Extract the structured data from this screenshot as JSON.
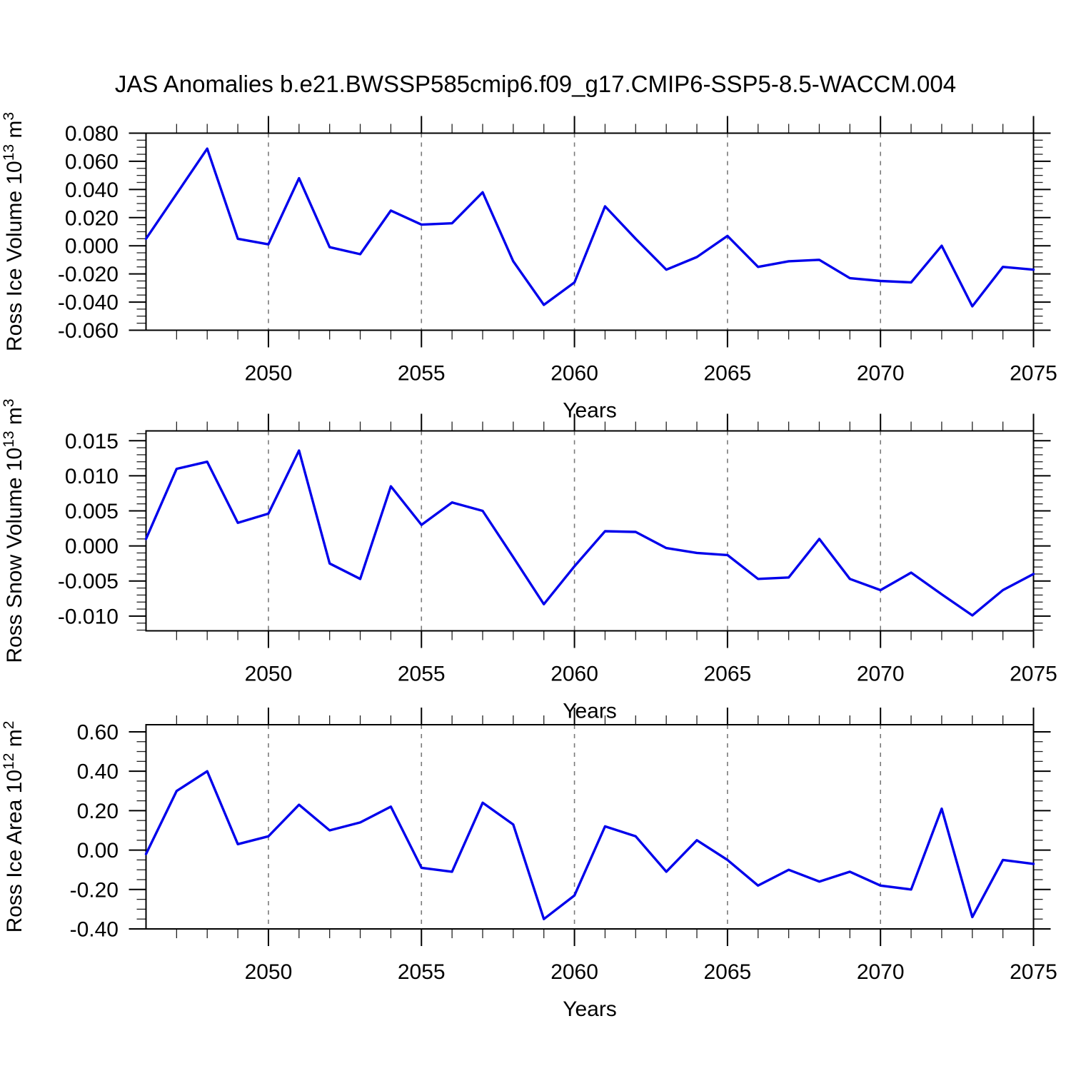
{
  "title": "JAS Anomalies b.e21.BWSSP585cmip6.f09_g17.CMIP6-SSP5-8.5-WACCM.004",
  "line_color": "#0000EB",
  "grid_color": "#7a7a7a",
  "axis_color": "#000000",
  "chart_data": [
    {
      "type": "line",
      "title": "",
      "ylabel": "Ross Ice Volume 10^13 m^3",
      "ylabel_parts": [
        [
          "Ross Ice Volume 10",
          0
        ],
        [
          "13",
          1
        ],
        [
          " m",
          0
        ],
        [
          "3",
          1
        ]
      ],
      "xlabel": "Years",
      "x": [
        2046,
        2047,
        2048,
        2049,
        2050,
        2051,
        2052,
        2053,
        2054,
        2055,
        2056,
        2057,
        2058,
        2059,
        2060,
        2061,
        2062,
        2063,
        2064,
        2065,
        2066,
        2067,
        2068,
        2069,
        2070,
        2071,
        2072,
        2073,
        2074,
        2075
      ],
      "values": [
        0.005,
        0.037,
        0.069,
        0.005,
        0.001,
        0.048,
        -0.001,
        -0.006,
        0.025,
        0.015,
        0.016,
        0.038,
        -0.011,
        -0.042,
        -0.026,
        0.028,
        0.005,
        -0.017,
        -0.008,
        0.007,
        -0.015,
        -0.011,
        -0.01,
        -0.023,
        -0.025,
        -0.026,
        0.0,
        -0.043,
        -0.015,
        -0.017
      ],
      "ylim": [
        -0.06,
        0.08
      ],
      "yticks": [
        0.08,
        0.06,
        0.04,
        0.02,
        0.0,
        -0.02,
        -0.04,
        -0.06
      ],
      "ytick_labels": [
        "0.080",
        "0.060",
        "0.040",
        "0.020",
        "0.000",
        "-0.020",
        "-0.040",
        "-0.060"
      ],
      "yminor_step": 0.005,
      "xlim": [
        2046,
        2075
      ],
      "xticks": [
        2050,
        2055,
        2060,
        2065,
        2070,
        2075
      ],
      "xtick_labels": [
        "2050",
        "2055",
        "2060",
        "2065",
        "2070",
        "2075"
      ],
      "xminor_step": 1,
      "grid_x": [
        2050,
        2055,
        2060,
        2065,
        2070
      ],
      "grid_style": "vertical-dashed",
      "legend": "none"
    },
    {
      "type": "line",
      "title": "",
      "ylabel": "Ross Snow Volume 10^13 m^3",
      "ylabel_parts": [
        [
          "Ross Snow Volume 10",
          0
        ],
        [
          "13",
          1
        ],
        [
          " m",
          0
        ],
        [
          "3",
          1
        ]
      ],
      "xlabel": "Years",
      "x": [
        2046,
        2047,
        2048,
        2049,
        2050,
        2051,
        2052,
        2053,
        2054,
        2055,
        2056,
        2057,
        2058,
        2059,
        2060,
        2061,
        2062,
        2063,
        2064,
        2065,
        2066,
        2067,
        2068,
        2069,
        2070,
        2071,
        2072,
        2073,
        2074,
        2075
      ],
      "values": [
        0.001,
        0.011,
        0.012,
        0.0033,
        0.0046,
        0.0136,
        -0.0025,
        -0.0047,
        0.0085,
        0.003,
        0.0062,
        0.005,
        -0.0016,
        -0.0083,
        -0.0029,
        0.0021,
        0.002,
        -0.0003,
        -0.001,
        -0.0013,
        -0.0047,
        -0.0045,
        0.001,
        -0.0047,
        -0.0063,
        -0.0038,
        -0.0069,
        -0.0099,
        -0.0063,
        -0.004
      ],
      "ylim": [
        -0.0121,
        0.0164
      ],
      "yticks": [
        0.015,
        0.01,
        0.005,
        0.0,
        -0.005,
        -0.01
      ],
      "ytick_labels": [
        "0.015",
        "0.010",
        "0.005",
        "0.000",
        "-0.005",
        "-0.010"
      ],
      "yminor_step": 0.001,
      "xlim": [
        2046,
        2075
      ],
      "xticks": [
        2050,
        2055,
        2060,
        2065,
        2070,
        2075
      ],
      "xtick_labels": [
        "2050",
        "2055",
        "2060",
        "2065",
        "2070",
        "2075"
      ],
      "xminor_step": 1,
      "grid_x": [
        2050,
        2055,
        2060,
        2065,
        2070
      ],
      "grid_style": "vertical-dashed",
      "legend": "none"
    },
    {
      "type": "line",
      "title": "",
      "ylabel": "Ross Ice Area 10^12 m^2",
      "ylabel_parts": [
        [
          "Ross Ice Area 10",
          0
        ],
        [
          "12",
          1
        ],
        [
          " m",
          0
        ],
        [
          "2",
          1
        ]
      ],
      "xlabel": "Years",
      "x": [
        2046,
        2047,
        2048,
        2049,
        2050,
        2051,
        2052,
        2053,
        2054,
        2055,
        2056,
        2057,
        2058,
        2059,
        2060,
        2061,
        2062,
        2063,
        2064,
        2065,
        2066,
        2067,
        2068,
        2069,
        2070,
        2071,
        2072,
        2073,
        2074,
        2075
      ],
      "values": [
        -0.02,
        0.3,
        0.4,
        0.03,
        0.07,
        0.23,
        0.1,
        0.14,
        0.22,
        -0.09,
        -0.11,
        0.24,
        0.13,
        -0.35,
        -0.23,
        0.12,
        0.07,
        -0.11,
        0.05,
        -0.05,
        -0.18,
        -0.1,
        -0.16,
        -0.11,
        -0.18,
        -0.2,
        0.21,
        -0.34,
        -0.05,
        -0.07
      ],
      "ylim": [
        -0.4,
        0.636
      ],
      "yticks": [
        0.6,
        0.4,
        0.2,
        0.0,
        -0.2,
        -0.4
      ],
      "ytick_labels": [
        "0.60",
        "0.40",
        "0.20",
        "0.00",
        "-0.20",
        "-0.40"
      ],
      "yminor_step": 0.05,
      "xlim": [
        2046,
        2075
      ],
      "xticks": [
        2050,
        2055,
        2060,
        2065,
        2070,
        2075
      ],
      "xtick_labels": [
        "2050",
        "2055",
        "2060",
        "2065",
        "2070",
        "2075"
      ],
      "xminor_step": 1,
      "grid_x": [
        2050,
        2055,
        2060,
        2065,
        2070
      ],
      "grid_style": "vertical-dashed",
      "legend": "none"
    }
  ]
}
